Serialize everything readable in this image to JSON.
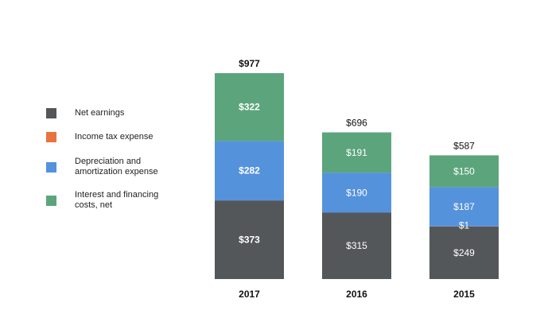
{
  "chart_data": {
    "type": "bar",
    "stacked": true,
    "categories": [
      "2017",
      "2016",
      "2015"
    ],
    "series": [
      {
        "name": "Net earnings",
        "values": [
          373,
          315,
          249
        ],
        "value_labels": [
          "$373",
          "$315",
          "$249"
        ],
        "color": "#54575a"
      },
      {
        "name": "Income tax expense",
        "values": [
          0,
          0,
          1
        ],
        "value_labels": [
          "",
          "",
          "$1"
        ],
        "color": "#e8733f"
      },
      {
        "name": "Depreciation and amortization expense",
        "values": [
          282,
          190,
          187
        ],
        "value_labels": [
          "$282",
          "$190",
          "$187"
        ],
        "color": "#5592dc"
      },
      {
        "name": "Interest and financing costs, net",
        "values": [
          322,
          191,
          150
        ],
        "value_labels": [
          "$322",
          "$191",
          "$150"
        ],
        "color": "#5ca57c"
      }
    ],
    "totals": [
      977,
      696,
      587
    ],
    "total_labels": [
      "$977",
      "$696",
      "$587"
    ],
    "highlight_category": "2017",
    "title": "",
    "xlabel": "",
    "ylabel": "",
    "ylim": [
      0,
      977
    ],
    "grid": false,
    "legend_position": "left"
  },
  "legend": {
    "items": [
      {
        "label": "Net earnings",
        "color": "#54575a"
      },
      {
        "label": "Income tax expense",
        "color": "#e8733f"
      },
      {
        "label": "Depreciation and\namortization expense",
        "color": "#5592dc"
      },
      {
        "label": "Interest and financing\ncosts, net",
        "color": "#5ca57c"
      }
    ]
  }
}
